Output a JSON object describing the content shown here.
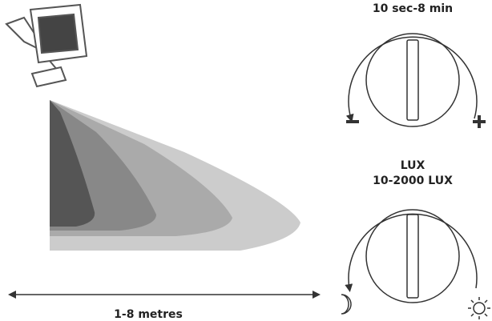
{
  "timer": {
    "label": "10 sec-8 min"
  },
  "lux": {
    "title": "LUX",
    "label": "10-2000 LUX"
  },
  "range": {
    "label": "1-8 metres"
  }
}
